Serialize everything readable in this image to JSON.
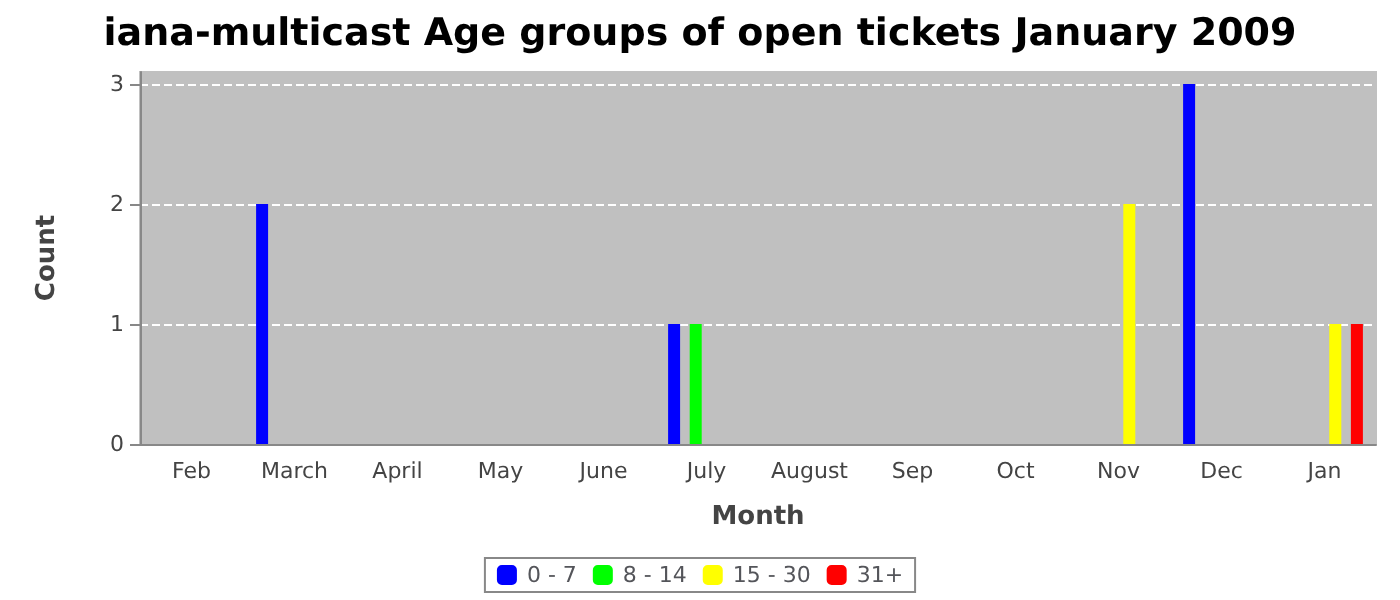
{
  "chart_data": {
    "type": "bar",
    "title": "iana-multicast Age groups of open tickets January 2009",
    "xlabel": "Month",
    "ylabel": "Count",
    "categories": [
      "Feb",
      "March",
      "April",
      "May",
      "June",
      "July",
      "August",
      "Sep",
      "Oct",
      "Nov",
      "Dec",
      "Jan"
    ],
    "series": [
      {
        "name": "0 - 7",
        "color": "#0000ff",
        "values": [
          0,
          2,
          0,
          0,
          0,
          1,
          0,
          0,
          0,
          0,
          3,
          0
        ]
      },
      {
        "name": "8 - 14",
        "color": "#00ff00",
        "values": [
          0,
          0,
          0,
          0,
          0,
          1,
          0,
          0,
          0,
          0,
          0,
          0
        ]
      },
      {
        "name": "15 - 30",
        "color": "#ffff00",
        "values": [
          0,
          0,
          0,
          0,
          0,
          0,
          0,
          0,
          0,
          2,
          0,
          1
        ]
      },
      {
        "name": "31+",
        "color": "#ff0000",
        "values": [
          0,
          0,
          0,
          0,
          0,
          0,
          0,
          0,
          0,
          0,
          0,
          1
        ]
      }
    ],
    "ylim": [
      0,
      3.1
    ],
    "yticks": [
      0,
      1,
      2,
      3
    ],
    "grid": "y",
    "legend": "bottom"
  }
}
